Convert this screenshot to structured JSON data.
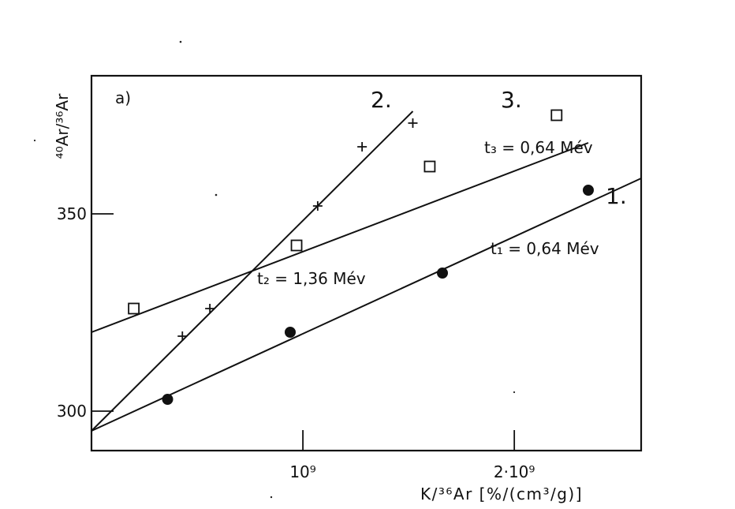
{
  "chart_data": {
    "type": "scatter",
    "panel_label": "a)",
    "xlabel": "K/³⁶Ar [%/(cm³/g)]",
    "ylabel": "⁴⁰Ar/³⁶Ar",
    "xlim": [
      0,
      2600000000
    ],
    "ylim": [
      290,
      385
    ],
    "x_ticks": [
      {
        "value": 1000000000,
        "label": "10⁹"
      },
      {
        "value": 2000000000,
        "label": "2·10⁹"
      }
    ],
    "y_ticks": [
      {
        "value": 300,
        "label": "300"
      },
      {
        "value": 350,
        "label": "350"
      }
    ],
    "grid": false,
    "series": [
      {
        "name": "1.",
        "marker": "filled-circle",
        "points": [
          {
            "x": 360000000,
            "y": 303
          },
          {
            "x": 940000000,
            "y": 320
          },
          {
            "x": 1660000000,
            "y": 335
          },
          {
            "x": 2350000000,
            "y": 356
          }
        ],
        "fit": {
          "x0": 0,
          "y0": 295,
          "x1": 2600000000,
          "y1": 359
        },
        "annotation": "t₁ = 0,64 Mév"
      },
      {
        "name": "2.",
        "marker": "plus",
        "points": [
          {
            "x": 430000000,
            "y": 319
          },
          {
            "x": 560000000,
            "y": 326
          },
          {
            "x": 1070000000,
            "y": 352
          },
          {
            "x": 1280000000,
            "y": 367
          },
          {
            "x": 1520000000,
            "y": 373
          }
        ],
        "fit": {
          "x0": 0,
          "y0": 295,
          "x1": 1520000000,
          "y1": 376
        },
        "annotation": "t₂ = 1,36 Mév"
      },
      {
        "name": "3.",
        "marker": "open-square",
        "points": [
          {
            "x": 200000000,
            "y": 326
          },
          {
            "x": 970000000,
            "y": 342
          },
          {
            "x": 1600000000,
            "y": 362
          },
          {
            "x": 2200000000,
            "y": 375
          }
        ],
        "fit": {
          "x0": 0,
          "y0": 320,
          "x1": 2350000000,
          "y1": 368
        },
        "annotation": "t₃ = 0,64 Mév"
      }
    ]
  }
}
